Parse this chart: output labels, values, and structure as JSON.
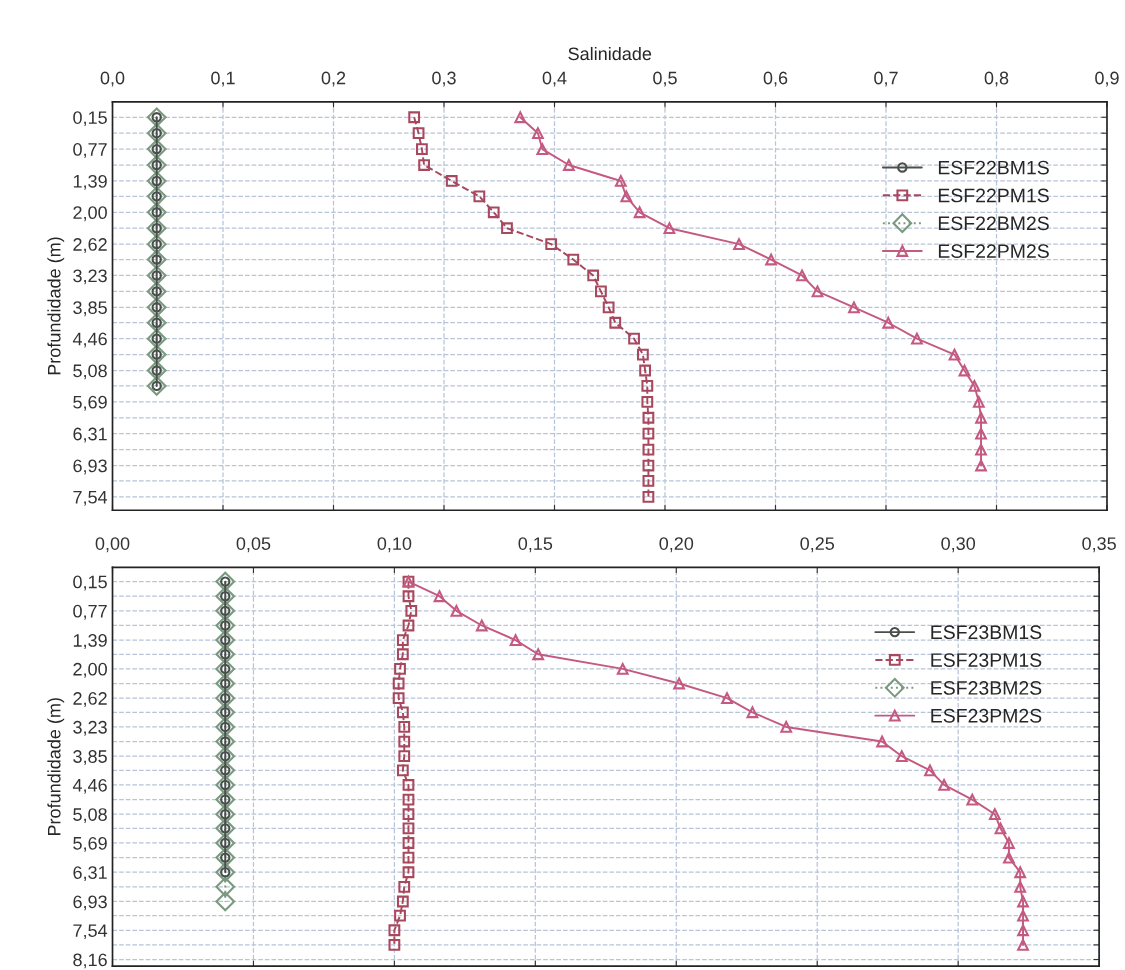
{
  "chart_data": [
    {
      "type": "line",
      "xlabel": "Salinidade",
      "ylabel": "Profundidade (m)",
      "xlim": [
        0,
        0.9
      ],
      "ylim": [
        7.8,
        -0.15
      ],
      "xticks": [
        {
          "value": 0,
          "label": "0,0"
        },
        {
          "value": 0.1,
          "label": "0,1"
        },
        {
          "value": 0.2,
          "label": "0,2"
        },
        {
          "value": 0.3,
          "label": "0,3"
        },
        {
          "value": 0.4,
          "label": "0,4"
        },
        {
          "value": 0.5,
          "label": "0,5"
        },
        {
          "value": 0.6,
          "label": "0,6"
        },
        {
          "value": 0.7,
          "label": "0,7"
        },
        {
          "value": 0.8,
          "label": "0,8"
        },
        {
          "value": 0.9,
          "label": "0,9"
        }
      ],
      "yticks": [
        {
          "value": 0.15,
          "label": "0,15"
        },
        {
          "value": 0.46,
          "label": null
        },
        {
          "value": 0.77,
          "label": "0,77"
        },
        {
          "value": 1.08,
          "label": null
        },
        {
          "value": 1.39,
          "label": "1,39"
        },
        {
          "value": 1.69,
          "label": null
        },
        {
          "value": 2.0,
          "label": "2,00"
        },
        {
          "value": 2.31,
          "label": null
        },
        {
          "value": 2.62,
          "label": "2,62"
        },
        {
          "value": 2.92,
          "label": null
        },
        {
          "value": 3.23,
          "label": "3,23"
        },
        {
          "value": 3.54,
          "label": null
        },
        {
          "value": 3.85,
          "label": "3,85"
        },
        {
          "value": 4.15,
          "label": null
        },
        {
          "value": 4.46,
          "label": "4,46"
        },
        {
          "value": 4.77,
          "label": null
        },
        {
          "value": 5.08,
          "label": "5,08"
        },
        {
          "value": 5.38,
          "label": null
        },
        {
          "value": 5.69,
          "label": "5,69"
        },
        {
          "value": 6.0,
          "label": null
        },
        {
          "value": 6.31,
          "label": "6,31"
        },
        {
          "value": 6.62,
          "label": null
        },
        {
          "value": 6.93,
          "label": "6,93"
        },
        {
          "value": 7.23,
          "label": null
        },
        {
          "value": 7.54,
          "label": "7,54"
        }
      ],
      "grid": true,
      "legend": "top right",
      "series": [
        {
          "name": "ESF22BM1S",
          "color": "#4a4f4c",
          "marker": "circle",
          "line_style": "solid",
          "x": [
            0.04,
            0.04,
            0.04,
            0.04,
            0.04,
            0.04,
            0.04,
            0.04,
            0.04,
            0.04,
            0.04,
            0.04,
            0.04,
            0.04,
            0.04,
            0.04,
            0.04,
            0.04
          ],
          "values": [
            0.15,
            0.46,
            0.77,
            1.08,
            1.39,
            1.69,
            2.0,
            2.31,
            2.62,
            2.92,
            3.23,
            3.54,
            3.85,
            4.15,
            4.46,
            4.77,
            5.08,
            5.38
          ]
        },
        {
          "name": "ESF22PM1S",
          "color": "#a8485e",
          "marker": "square",
          "line_style": "dashed",
          "x": [
            0.273,
            0.277,
            0.28,
            0.282,
            0.307,
            0.332,
            0.345,
            0.357,
            0.397,
            0.417,
            0.435,
            0.442,
            0.449,
            0.455,
            0.472,
            0.48,
            0.482,
            0.484,
            0.484,
            0.485,
            0.485,
            0.485,
            0.485,
            0.485,
            0.485
          ],
          "values": [
            0.15,
            0.46,
            0.77,
            1.08,
            1.39,
            1.69,
            2.0,
            2.31,
            2.62,
            2.92,
            3.23,
            3.54,
            3.85,
            4.15,
            4.46,
            4.77,
            5.08,
            5.38,
            5.69,
            6.0,
            6.31,
            6.62,
            6.93,
            7.23,
            7.54
          ]
        },
        {
          "name": "ESF22BM2S",
          "color": "#7a9a80",
          "marker": "diamond",
          "line_style": "dotted",
          "x": [
            0.04,
            0.04,
            0.04,
            0.04,
            0.04,
            0.04,
            0.04,
            0.04,
            0.04,
            0.04,
            0.04,
            0.04,
            0.04,
            0.04,
            0.04,
            0.04,
            0.04,
            0.04
          ],
          "values": [
            0.15,
            0.46,
            0.77,
            1.08,
            1.39,
            1.69,
            2.0,
            2.31,
            2.62,
            2.92,
            3.23,
            3.54,
            3.85,
            4.15,
            4.46,
            4.77,
            5.08,
            5.38
          ]
        },
        {
          "name": "ESF22PM2S",
          "color": "#c45a80",
          "marker": "triangle",
          "line_style": "solid",
          "x": [
            0.369,
            0.385,
            0.389,
            0.413,
            0.46,
            0.465,
            0.477,
            0.504,
            0.567,
            0.596,
            0.624,
            0.638,
            0.671,
            0.702,
            0.728,
            0.762,
            0.771,
            0.78,
            0.784,
            0.786,
            0.786,
            0.786,
            0.786
          ],
          "values": [
            0.15,
            0.46,
            0.77,
            1.08,
            1.39,
            1.69,
            2.0,
            2.31,
            2.62,
            2.92,
            3.23,
            3.54,
            3.85,
            4.15,
            4.46,
            4.77,
            5.08,
            5.38,
            5.69,
            6.0,
            6.31,
            6.62,
            6.93
          ]
        }
      ]
    },
    {
      "type": "line",
      "ylabel": "Profundidade (m)",
      "xlim": [
        0,
        0.35
      ],
      "ylim": [
        8.3,
        -0.15
      ],
      "xticks": [
        {
          "value": 0,
          "label": "0,00"
        },
        {
          "value": 0.05,
          "label": "0,05"
        },
        {
          "value": 0.1,
          "label": "0,10"
        },
        {
          "value": 0.15,
          "label": "0,15"
        },
        {
          "value": 0.2,
          "label": "0,20"
        },
        {
          "value": 0.25,
          "label": "0,25"
        },
        {
          "value": 0.3,
          "label": "0,30"
        },
        {
          "value": 0.35,
          "label": "0,35"
        }
      ],
      "yticks": [
        {
          "value": 0.15,
          "label": "0,15"
        },
        {
          "value": 0.46,
          "label": null
        },
        {
          "value": 0.77,
          "label": "0,77"
        },
        {
          "value": 1.08,
          "label": null
        },
        {
          "value": 1.39,
          "label": "1,39"
        },
        {
          "value": 1.69,
          "label": null
        },
        {
          "value": 2.0,
          "label": "2,00"
        },
        {
          "value": 2.31,
          "label": null
        },
        {
          "value": 2.62,
          "label": "2,62"
        },
        {
          "value": 2.92,
          "label": null
        },
        {
          "value": 3.23,
          "label": "3,23"
        },
        {
          "value": 3.54,
          "label": null
        },
        {
          "value": 3.85,
          "label": "3,85"
        },
        {
          "value": 4.15,
          "label": null
        },
        {
          "value": 4.46,
          "label": "4,46"
        },
        {
          "value": 4.77,
          "label": null
        },
        {
          "value": 5.08,
          "label": "5,08"
        },
        {
          "value": 5.38,
          "label": null
        },
        {
          "value": 5.69,
          "label": "5,69"
        },
        {
          "value": 6.0,
          "label": null
        },
        {
          "value": 6.31,
          "label": "6,31"
        },
        {
          "value": 6.62,
          "label": null
        },
        {
          "value": 6.93,
          "label": "6,93"
        },
        {
          "value": 7.23,
          "label": null
        },
        {
          "value": 7.54,
          "label": "7,54"
        },
        {
          "value": 7.85,
          "label": null
        },
        {
          "value": 8.16,
          "label": "8,16"
        }
      ],
      "grid": true,
      "legend": "top right",
      "series": [
        {
          "name": "ESF23BM1S",
          "color": "#4a4f4c",
          "marker": "circle",
          "line_style": "solid",
          "x": [
            0.04,
            0.04,
            0.04,
            0.04,
            0.04,
            0.04,
            0.04,
            0.04,
            0.04,
            0.04,
            0.04,
            0.04,
            0.04,
            0.04,
            0.04,
            0.04,
            0.04,
            0.04,
            0.04,
            0.04,
            0.04
          ],
          "values": [
            0.15,
            0.46,
            0.77,
            1.08,
            1.39,
            1.69,
            2.0,
            2.31,
            2.62,
            2.92,
            3.23,
            3.54,
            3.85,
            4.15,
            4.46,
            4.77,
            5.08,
            5.38,
            5.69,
            6.0,
            6.31
          ]
        },
        {
          "name": "ESF23PM1S",
          "color": "#a8485e",
          "marker": "square",
          "line_style": "dashed",
          "x": [
            0.105,
            0.105,
            0.106,
            0.105,
            0.103,
            0.103,
            0.102,
            0.1015,
            0.1015,
            0.103,
            0.1035,
            0.1035,
            0.1035,
            0.103,
            0.105,
            0.105,
            0.105,
            0.105,
            0.105,
            0.105,
            0.105,
            0.1035,
            0.103,
            0.102,
            0.1,
            0.1
          ],
          "values": [
            0.15,
            0.46,
            0.77,
            1.08,
            1.39,
            1.69,
            2.0,
            2.31,
            2.62,
            2.92,
            3.23,
            3.54,
            3.85,
            4.15,
            4.46,
            4.77,
            5.08,
            5.38,
            5.69,
            6.0,
            6.31,
            6.62,
            6.93,
            7.23,
            7.54,
            7.85
          ]
        },
        {
          "name": "ESF23BM2S",
          "color": "#7a9a80",
          "marker": "diamond",
          "line_style": "dotted",
          "x": [
            0.04,
            0.04,
            0.04,
            0.04,
            0.04,
            0.04,
            0.04,
            0.04,
            0.04,
            0.04,
            0.04,
            0.04,
            0.04,
            0.04,
            0.04,
            0.04,
            0.04,
            0.04,
            0.04,
            0.04,
            0.04,
            0.04,
            0.04
          ],
          "values": [
            0.15,
            0.46,
            0.77,
            1.08,
            1.39,
            1.69,
            2.0,
            2.31,
            2.62,
            2.92,
            3.23,
            3.54,
            3.85,
            4.15,
            4.46,
            4.77,
            5.08,
            5.38,
            5.69,
            6.0,
            6.31,
            6.62,
            6.93
          ]
        },
        {
          "name": "ESF23PM2S",
          "color": "#c45a80",
          "marker": "triangle",
          "line_style": "solid",
          "x": [
            0.105,
            0.116,
            0.122,
            0.131,
            0.143,
            0.151,
            0.181,
            0.201,
            0.218,
            0.227,
            0.239,
            0.273,
            0.28,
            0.29,
            0.295,
            0.305,
            0.313,
            0.315,
            0.318,
            0.318,
            0.322,
            0.322,
            0.323,
            0.323,
            0.323,
            0.323
          ],
          "values": [
            0.15,
            0.46,
            0.77,
            1.08,
            1.39,
            1.69,
            2.0,
            2.31,
            2.62,
            2.92,
            3.23,
            3.54,
            3.85,
            4.15,
            4.46,
            4.77,
            5.08,
            5.38,
            5.69,
            6.0,
            6.31,
            6.62,
            6.93,
            7.23,
            7.54,
            7.85
          ]
        }
      ]
    }
  ]
}
